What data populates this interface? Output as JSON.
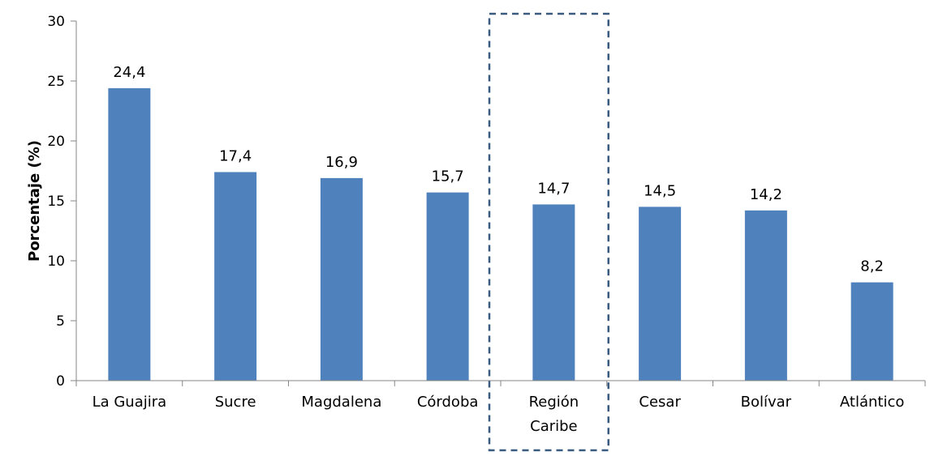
{
  "chart_data": {
    "type": "bar",
    "categories": [
      [
        "La Guajira"
      ],
      [
        "Sucre"
      ],
      [
        "Magdalena"
      ],
      [
        "Córdoba"
      ],
      [
        "Región",
        "Caribe"
      ],
      [
        "Cesar"
      ],
      [
        "Bolívar"
      ],
      [
        "Atlántico"
      ]
    ],
    "values": [
      24.4,
      17.4,
      16.9,
      15.7,
      14.7,
      14.5,
      14.2,
      8.2
    ],
    "value_labels": [
      "24,4",
      "17,4",
      "16,9",
      "15,7",
      "14,7",
      "14,5",
      "14,2",
      "8,2"
    ],
    "ylabel": "Porcentaje (%)",
    "ylim": [
      0,
      30
    ],
    "yticks": [
      0,
      5,
      10,
      15,
      20,
      25,
      30
    ],
    "grid": false,
    "legend": "none",
    "bar_color": "#4F81BD",
    "highlight_index": 4,
    "highlight_color": "#3A5A80"
  }
}
